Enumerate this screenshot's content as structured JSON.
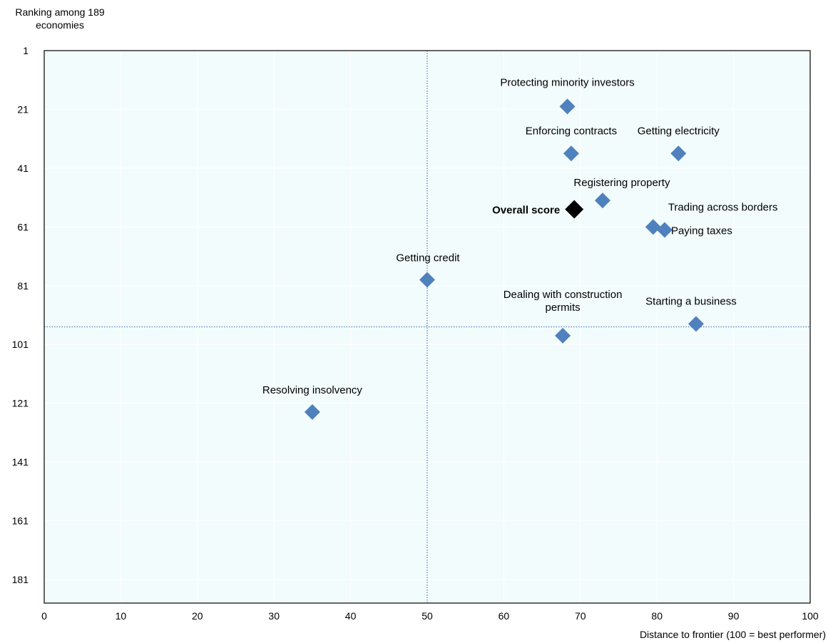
{
  "chart_data": {
    "type": "scatter",
    "ylabel": [
      "Ranking among 189",
      "economies"
    ],
    "xlabel": "Distance to frontier (100 = best performer)",
    "xlim": [
      0,
      100
    ],
    "ylim": [
      1,
      189
    ],
    "y_reversed": true,
    "xticks": [
      0,
      10,
      20,
      30,
      40,
      50,
      60,
      70,
      80,
      90,
      100
    ],
    "yticks": [
      1,
      21,
      41,
      61,
      81,
      101,
      121,
      141,
      161,
      181
    ],
    "grid": "white gridlines",
    "reference_lines": {
      "x": 50,
      "y": 95
    },
    "colors": {
      "plot_bg": "#f2fcfc",
      "point": "#4f81bd",
      "overall": "#000000",
      "ref_line": "#4f81bd",
      "grid": "#ffffff"
    },
    "points": [
      {
        "label": "Protecting minority  investors",
        "x": 68.3,
        "y": 20,
        "highlight": false
      },
      {
        "label": "Enforcing contracts",
        "x": 68.8,
        "y": 36,
        "highlight": false
      },
      {
        "label": "Getting electricity",
        "x": 82.8,
        "y": 36,
        "highlight": false
      },
      {
        "label": "Registering property",
        "x": 72.9,
        "y": 52,
        "highlight": false
      },
      {
        "label": "Overall score",
        "x": 69.2,
        "y": 55,
        "highlight": true
      },
      {
        "label": "Trading across borders",
        "x": 79.5,
        "y": 61,
        "highlight": false
      },
      {
        "label": "Paying taxes",
        "x": 81.0,
        "y": 62,
        "highlight": false
      },
      {
        "label": "Getting credit",
        "x": 50.0,
        "y": 79,
        "highlight": false
      },
      {
        "label": "Dealing with construction permits",
        "x": 67.7,
        "y": 98,
        "highlight": false
      },
      {
        "label": "Starting a business",
        "x": 85.1,
        "y": 94,
        "highlight": false
      },
      {
        "label": "Resolving insolvency",
        "x": 35.0,
        "y": 124,
        "highlight": false
      }
    ]
  }
}
